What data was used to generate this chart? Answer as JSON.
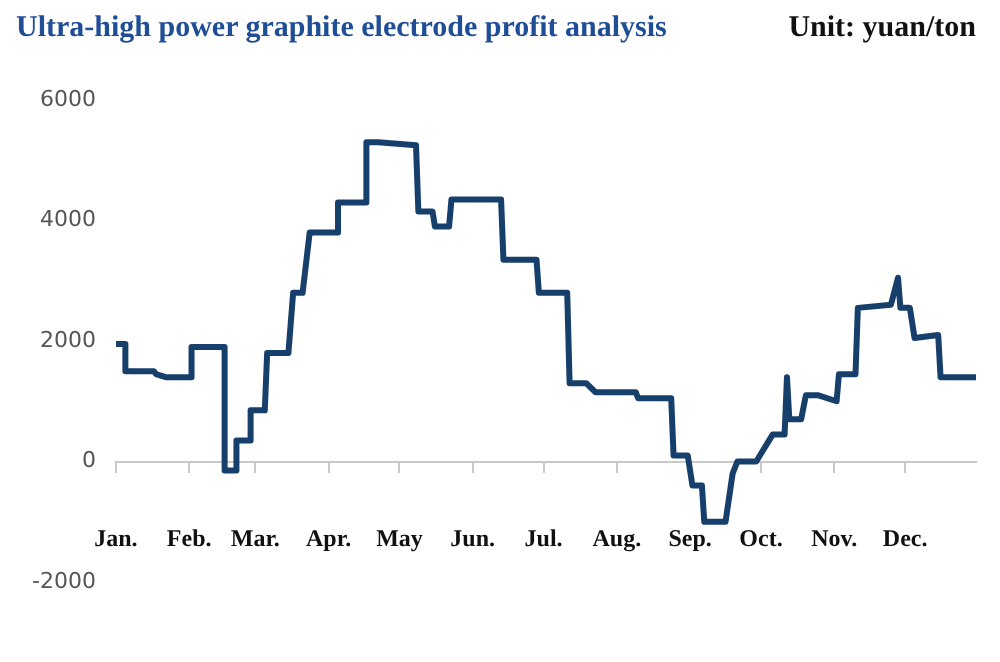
{
  "chart_data": {
    "type": "line",
    "title": "Ultra-high power graphite electrode profit analysis",
    "annotations": [
      "Unit: yuan/ton"
    ],
    "x": [
      "--01-01",
      "--01-05",
      "--01-05",
      "--01-17",
      "--01-18",
      "--01-22",
      "--01-23",
      "--02-02",
      "--02-02",
      "--02-16",
      "--02-16",
      "--02-21",
      "--02-21",
      "--02-27",
      "--02-27",
      "--03-05",
      "--03-06",
      "--03-15",
      "--03-17",
      "--03-21",
      "--03-24",
      "--04-05",
      "--04-05",
      "--04-17",
      "--04-17",
      "--04-22",
      "--05-08",
      "--05-09",
      "--05-15",
      "--05-16",
      "--05-22",
      "--05-23",
      "--06-13",
      "--06-14",
      "--06-28",
      "--06-29",
      "--07-11",
      "--07-12",
      "--07-19",
      "--07-23",
      "--08-09",
      "--08-10",
      "--08-24",
      "--08-25",
      "--08-31",
      "--09-02",
      "--09-06",
      "--09-07",
      "--09-16",
      "--09-19",
      "--09-21",
      "--09-29",
      "--10-06",
      "--10-11",
      "--10-12",
      "--10-13",
      "--10-18",
      "--10-20",
      "--10-25",
      "--11-02",
      "--11-03",
      "--11-10",
      "--11-11",
      "--11-25",
      "--11-28",
      "--11-29",
      "--12-03",
      "--12-05",
      "--12-15",
      "--12-16",
      "--12-31"
    ],
    "series": [
      {
        "color": "#173f6b",
        "values": [
          1950,
          1950,
          1500,
          1500,
          1450,
          1400,
          1400,
          1400,
          1900,
          1900,
          -150,
          -150,
          350,
          350,
          850,
          850,
          1800,
          1800,
          2800,
          2800,
          3800,
          3800,
          4300,
          4300,
          5300,
          5300,
          5250,
          4150,
          4150,
          3900,
          3900,
          4350,
          4350,
          3350,
          3350,
          2800,
          2800,
          1300,
          1300,
          1150,
          1150,
          1050,
          1050,
          100,
          100,
          -400,
          -400,
          -1000,
          -1000,
          -200,
          0,
          0,
          450,
          450,
          1400,
          700,
          700,
          1100,
          1100,
          1000,
          1450,
          1450,
          2550,
          2600,
          3050,
          2550,
          2550,
          2050,
          2100,
          1400,
          1400
        ]
      }
    ],
    "xlim": [
      "--01-01",
      "--12-31"
    ],
    "xticks": [
      {
        "value": "--01-01",
        "label": "Jan."
      },
      {
        "value": "--02-01",
        "label": "Feb."
      },
      {
        "value": "--03-01",
        "label": "Mar."
      },
      {
        "value": "--04-01",
        "label": "Apr."
      },
      {
        "value": "--05-01",
        "label": "May"
      },
      {
        "value": "--06-01",
        "label": "Jun."
      },
      {
        "value": "--07-01",
        "label": "Jul."
      },
      {
        "value": "--08-01",
        "label": "Aug."
      },
      {
        "value": "--09-01",
        "label": "Sep."
      },
      {
        "value": "--10-01",
        "label": "Oct."
      },
      {
        "value": "--11-01",
        "label": "Nov."
      },
      {
        "value": "--12-01",
        "label": "Dec."
      }
    ],
    "ylim": [
      -2000,
      6000
    ],
    "yticks": [
      -2000,
      0,
      2000,
      4000,
      6000
    ],
    "grid": false,
    "legend": false,
    "marker": "none",
    "line_style": "solid"
  }
}
